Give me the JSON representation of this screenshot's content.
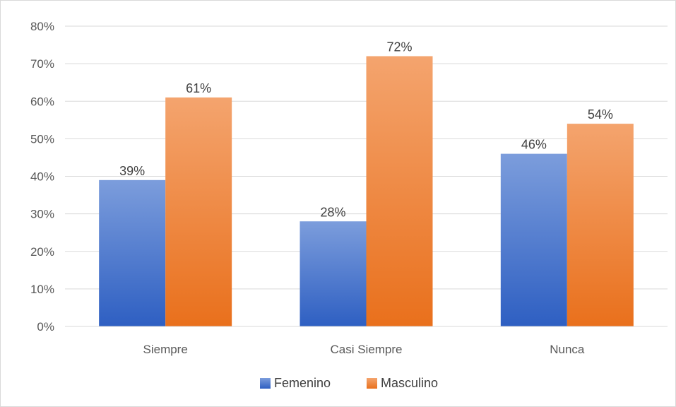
{
  "chart_data": {
    "type": "bar",
    "categories": [
      "Siempre",
      "Casi Siempre",
      "Nunca"
    ],
    "series": [
      {
        "name": "Femenino",
        "values": [
          39,
          28,
          46
        ],
        "labels": [
          "39%",
          "28%",
          "46%"
        ],
        "color_top": "#7c9ddc",
        "color_bottom": "#2e5fc2"
      },
      {
        "name": "Masculino",
        "values": [
          61,
          72,
          54
        ],
        "labels": [
          "61%",
          "72%",
          "54%"
        ],
        "color_top": "#f4a46e",
        "color_bottom": "#e9701c"
      }
    ],
    "y_ticks": [
      {
        "value": 0,
        "label": "0%"
      },
      {
        "value": 10,
        "label": "10%"
      },
      {
        "value": 20,
        "label": "20%"
      },
      {
        "value": 30,
        "label": "30%"
      },
      {
        "value": 40,
        "label": "40%"
      },
      {
        "value": 50,
        "label": "50%"
      },
      {
        "value": 60,
        "label": "60%"
      },
      {
        "value": 70,
        "label": "70%"
      },
      {
        "value": 80,
        "label": "80%"
      }
    ],
    "ylim": [
      0,
      80
    ],
    "title": "",
    "xlabel": "",
    "ylabel": "",
    "grid": true,
    "legend_position": "bottom"
  }
}
